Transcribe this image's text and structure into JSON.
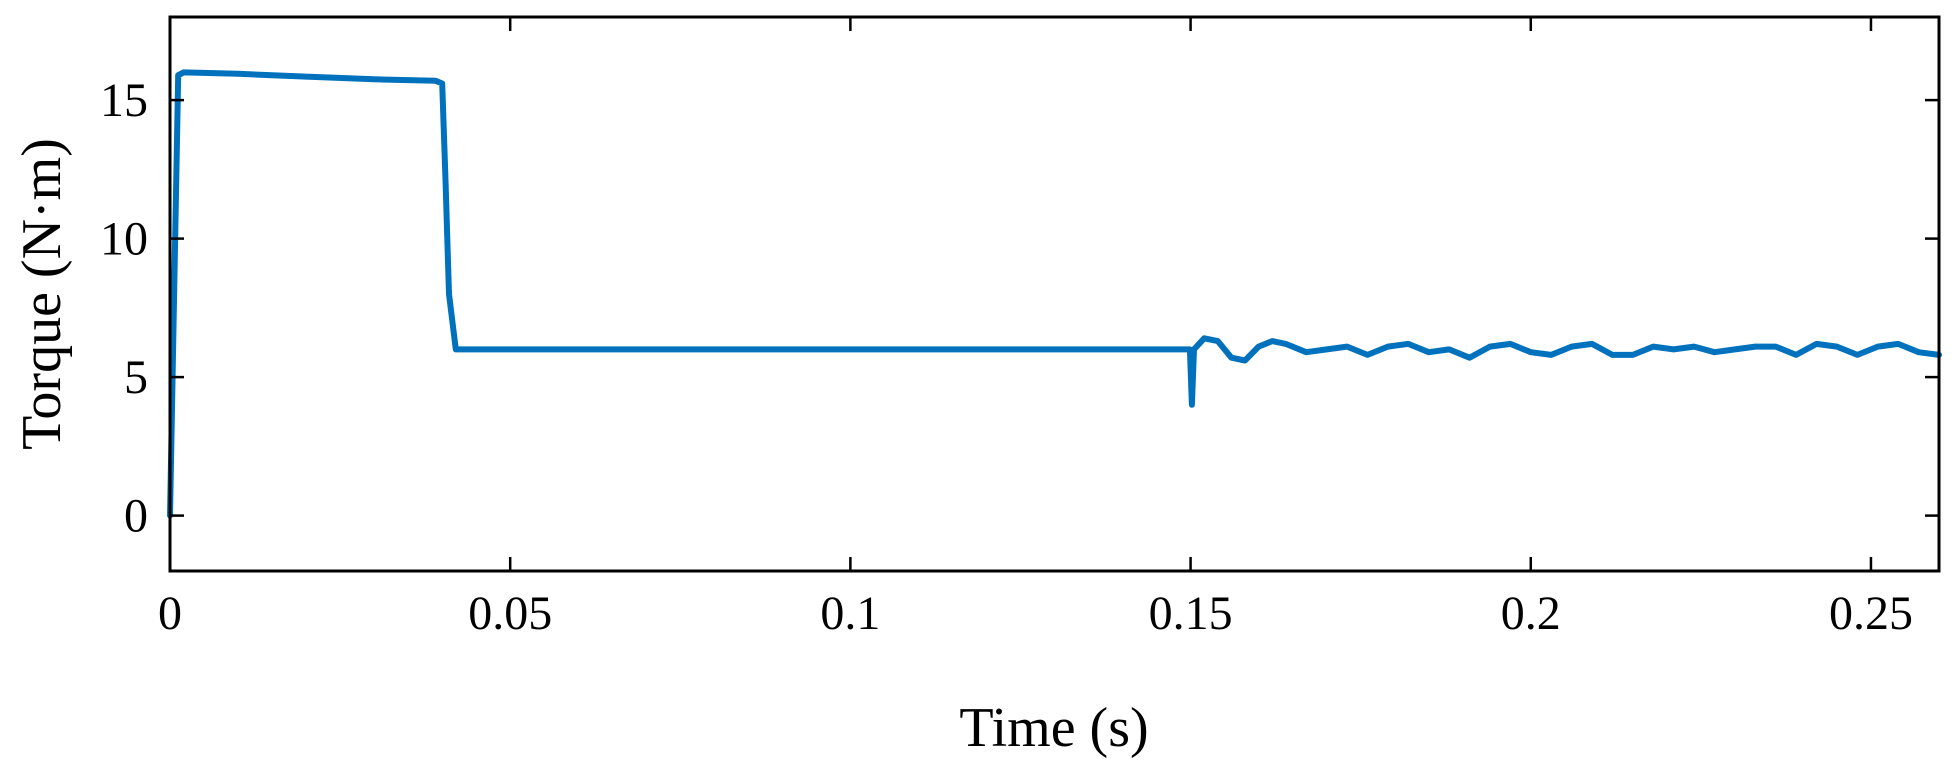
{
  "chart_data": {
    "type": "line",
    "title": "",
    "xlabel": "Time (s)",
    "ylabel": "Torque (N·m)",
    "xlim": [
      0,
      0.26
    ],
    "ylim": [
      -2,
      18
    ],
    "grid": false,
    "x_ticks": [
      0,
      0.05,
      0.1,
      0.15,
      0.2,
      0.25
    ],
    "x_tick_labels": [
      "0",
      "0.05",
      "0.1",
      "0.15",
      "0.2",
      "0.25"
    ],
    "y_ticks": [
      0,
      5,
      10,
      15
    ],
    "y_tick_labels": [
      "0",
      "5",
      "10",
      "15"
    ],
    "series_color": "#0072BD",
    "series": [
      {
        "x": [
          0,
          0.0012,
          0.002,
          0.01,
          0.02,
          0.03,
          0.039,
          0.04,
          0.0405,
          0.041,
          0.042,
          0.05,
          0.08,
          0.1,
          0.12,
          0.14,
          0.1499,
          0.1502,
          0.1505,
          0.152,
          0.154,
          0.156,
          0.158,
          0.16,
          0.162,
          0.164,
          0.167,
          0.17,
          0.173,
          0.176,
          0.179,
          0.182,
          0.185,
          0.188,
          0.191,
          0.194,
          0.197,
          0.2,
          0.203,
          0.206,
          0.209,
          0.212,
          0.215,
          0.218,
          0.221,
          0.224,
          0.227,
          0.23,
          0.233,
          0.236,
          0.239,
          0.242,
          0.245,
          0.248,
          0.251,
          0.254,
          0.257,
          0.26
        ],
        "y": [
          0,
          15.9,
          16.0,
          15.95,
          15.85,
          15.75,
          15.7,
          15.6,
          12.0,
          8.0,
          6.0,
          6.0,
          6.0,
          6.0,
          6.0,
          6.0,
          6.0,
          4.0,
          6.0,
          6.4,
          6.3,
          5.7,
          5.6,
          6.1,
          6.3,
          6.2,
          5.9,
          6.0,
          6.1,
          5.8,
          6.1,
          6.2,
          5.9,
          6.0,
          5.7,
          6.1,
          6.2,
          5.9,
          5.8,
          6.1,
          6.2,
          5.8,
          5.8,
          6.1,
          6.0,
          6.1,
          5.9,
          6.0,
          6.1,
          6.1,
          5.8,
          6.2,
          6.1,
          5.8,
          6.1,
          6.2,
          5.9,
          5.8
        ]
      }
    ]
  }
}
